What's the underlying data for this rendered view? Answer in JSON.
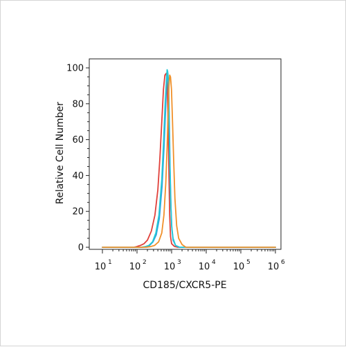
{
  "chart_data": {
    "type": "line",
    "title": "",
    "xlabel": "CD185/CXCR5-PE",
    "ylabel": "Relative Cell Number",
    "x_scale": "log",
    "xlim": [
      10,
      1000000
    ],
    "ylim": [
      0,
      100
    ],
    "x_ticks": [
      {
        "base": "10",
        "exp": "1",
        "value": 10
      },
      {
        "base": "10",
        "exp": "2",
        "value": 100
      },
      {
        "base": "10",
        "exp": "3",
        "value": 1000
      },
      {
        "base": "10",
        "exp": "4",
        "value": 10000
      },
      {
        "base": "10",
        "exp": "5",
        "value": 100000
      },
      {
        "base": "10",
        "exp": "6",
        "value": 1000000
      }
    ],
    "y_ticks": [
      "0",
      "20",
      "40",
      "60",
      "80",
      "100"
    ],
    "grid": false,
    "series": [
      {
        "color": "#e0403a",
        "x": [
          10,
          80,
          95,
          125,
          160,
          200,
          260,
          330,
          400,
          460,
          520,
          580,
          640,
          700,
          740,
          790,
          840,
          880,
          930,
          1000,
          1200,
          1500,
          1000000
        ],
        "y": [
          0,
          0,
          0.3,
          1,
          2,
          4,
          9,
          18,
          32,
          50,
          70,
          88,
          96,
          97,
          92,
          70,
          40,
          18,
          6,
          2,
          0.5,
          0,
          0
        ]
      },
      {
        "color": "#2a9fe0",
        "x": [
          10,
          140,
          180,
          230,
          290,
          360,
          440,
          530,
          600,
          660,
          700,
          740,
          780,
          820,
          860,
          900,
          960,
          1020,
          1100,
          1300,
          1700,
          1000000
        ],
        "y": [
          0,
          0,
          0.3,
          1,
          3,
          7,
          16,
          34,
          55,
          74,
          88,
          96,
          97,
          90,
          70,
          45,
          22,
          10,
          4,
          1,
          0,
          0
        ]
      },
      {
        "color": "#26c9d6",
        "x": [
          10,
          130,
          170,
          220,
          280,
          350,
          430,
          520,
          590,
          650,
          700,
          740,
          770,
          800,
          840,
          880,
          940,
          1000,
          1100,
          1300,
          1700,
          1000000
        ],
        "y": [
          0,
          0,
          0.3,
          1,
          3,
          8,
          18,
          38,
          60,
          80,
          92,
          99,
          98,
          92,
          75,
          50,
          26,
          12,
          5,
          1,
          0,
          0
        ]
      },
      {
        "color": "#f0902a",
        "x": [
          10,
          180,
          240,
          320,
          420,
          520,
          600,
          680,
          740,
          790,
          840,
          880,
          930,
          990,
          1060,
          1150,
          1250,
          1400,
          1600,
          2000,
          2600,
          1000000
        ],
        "y": [
          0,
          0,
          0.3,
          1,
          3,
          8,
          18,
          36,
          56,
          76,
          90,
          96,
          95,
          88,
          70,
          48,
          27,
          12,
          5,
          1.5,
          0,
          0
        ]
      }
    ]
  }
}
